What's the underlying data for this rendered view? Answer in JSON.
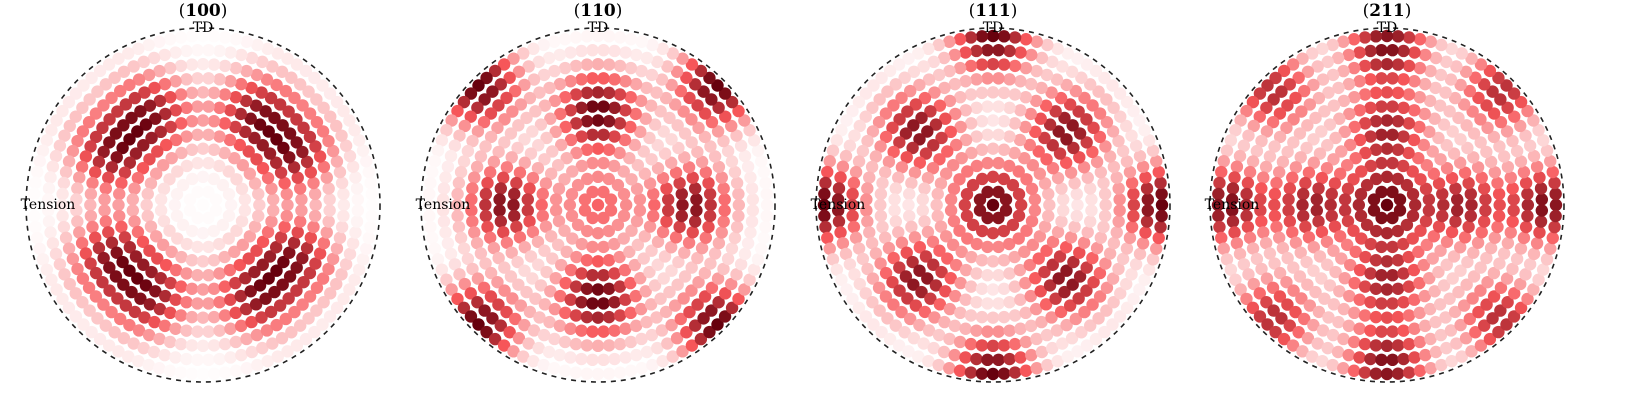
{
  "colors": {
    "low": "#ffffff",
    "mid": "#f7575a",
    "high": "#67000d",
    "boundary": "#222222"
  },
  "chart_data": [
    {
      "type": "pole-figure",
      "title_open": "(",
      "title_hkl": "100",
      "title_close": ")",
      "top_label": "TD",
      "left_label": "Tension",
      "maxima": [
        {
          "r": 0.62,
          "phi": 30,
          "weight": 1.0
        },
        {
          "r": 0.62,
          "phi": 60,
          "weight": 1.0
        },
        {
          "r": 0.62,
          "phi": 120,
          "weight": 1.0
        },
        {
          "r": 0.62,
          "phi": 150,
          "weight": 1.0
        },
        {
          "r": 0.62,
          "phi": 210,
          "weight": 1.0
        },
        {
          "r": 0.62,
          "phi": 240,
          "weight": 1.0
        },
        {
          "r": 0.62,
          "phi": 300,
          "weight": 1.0
        },
        {
          "r": 0.62,
          "phi": 330,
          "weight": 1.0
        }
      ]
    },
    {
      "type": "pole-figure",
      "title_open": "(",
      "title_hkl": "110",
      "title_close": ")",
      "top_label": "TD",
      "left_label": "Tension",
      "maxima": [
        {
          "r": 0.55,
          "phi": 90,
          "weight": 1.0
        },
        {
          "r": 0.55,
          "phi": 270,
          "weight": 1.0
        },
        {
          "r": 0.55,
          "phi": 0,
          "weight": 0.9
        },
        {
          "r": 0.55,
          "phi": 180,
          "weight": 0.9
        },
        {
          "r": 0.0,
          "phi": 0,
          "weight": 0.45
        },
        {
          "r": 1.0,
          "phi": 45,
          "weight": 1.0
        },
        {
          "r": 1.0,
          "phi": 135,
          "weight": 1.0
        },
        {
          "r": 1.0,
          "phi": 225,
          "weight": 1.0
        },
        {
          "r": 1.0,
          "phi": 315,
          "weight": 1.0
        }
      ]
    },
    {
      "type": "pole-figure",
      "title_open": "(",
      "title_hkl": "111",
      "title_close": ")",
      "top_label": "TD",
      "left_label": "Tension",
      "maxima": [
        {
          "r": 0.0,
          "phi": 0,
          "weight": 1.0
        },
        {
          "r": 0.62,
          "phi": 45,
          "weight": 0.9
        },
        {
          "r": 0.62,
          "phi": 135,
          "weight": 0.9
        },
        {
          "r": 0.62,
          "phi": 225,
          "weight": 0.9
        },
        {
          "r": 0.62,
          "phi": 315,
          "weight": 0.9
        },
        {
          "r": 1.0,
          "phi": 90,
          "weight": 1.0
        },
        {
          "r": 1.0,
          "phi": 270,
          "weight": 1.0
        },
        {
          "r": 1.0,
          "phi": 0,
          "weight": 1.0
        },
        {
          "r": 1.0,
          "phi": 180,
          "weight": 1.0
        }
      ]
    },
    {
      "type": "pole-figure",
      "title_open": "(",
      "title_hkl": "211",
      "title_close": ")",
      "top_label": "TD",
      "left_label": "Tension",
      "maxima": [
        {
          "r": 0.0,
          "phi": 0,
          "weight": 1.0
        },
        {
          "r": 0.45,
          "phi": 0,
          "weight": 0.85
        },
        {
          "r": 0.45,
          "phi": 90,
          "weight": 0.85
        },
        {
          "r": 0.45,
          "phi": 180,
          "weight": 0.85
        },
        {
          "r": 0.45,
          "phi": 270,
          "weight": 0.85
        },
        {
          "r": 0.95,
          "phi": 90,
          "weight": 1.0
        },
        {
          "r": 0.95,
          "phi": 270,
          "weight": 1.0
        },
        {
          "r": 0.95,
          "phi": 0,
          "weight": 1.0
        },
        {
          "r": 0.95,
          "phi": 180,
          "weight": 1.0
        },
        {
          "r": 0.95,
          "phi": 45,
          "weight": 0.8
        },
        {
          "r": 0.95,
          "phi": 135,
          "weight": 0.8
        },
        {
          "r": 0.95,
          "phi": 225,
          "weight": 0.8
        },
        {
          "r": 0.95,
          "phi": 315,
          "weight": 0.8
        }
      ]
    }
  ]
}
